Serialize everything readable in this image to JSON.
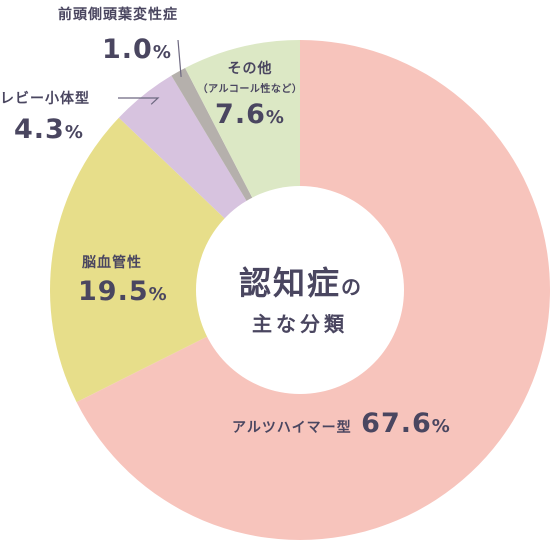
{
  "chart_data": {
    "type": "pie",
    "title_main": "認知症",
    "title_particle": "の",
    "title_sub": "主な分類",
    "slices": [
      {
        "label": "アルツハイマー型",
        "value": 67.6,
        "value_text": "67.6",
        "color": "#f7c4bc"
      },
      {
        "label": "脳血管性",
        "value": 19.5,
        "value_text": "19.5",
        "color": "#e7de8a"
      },
      {
        "label": "レビー小体型",
        "value": 4.3,
        "value_text": "4.3",
        "color": "#d7c3df"
      },
      {
        "label": "前頭側頭葉変性症",
        "value": 1.0,
        "value_text": "1.0",
        "color": "#b5b0ac"
      },
      {
        "label": "その他",
        "sublabel": "（アルコール性など）",
        "value": 7.6,
        "value_text": "7.6",
        "color": "#dce8c5"
      }
    ],
    "unit": "%"
  }
}
